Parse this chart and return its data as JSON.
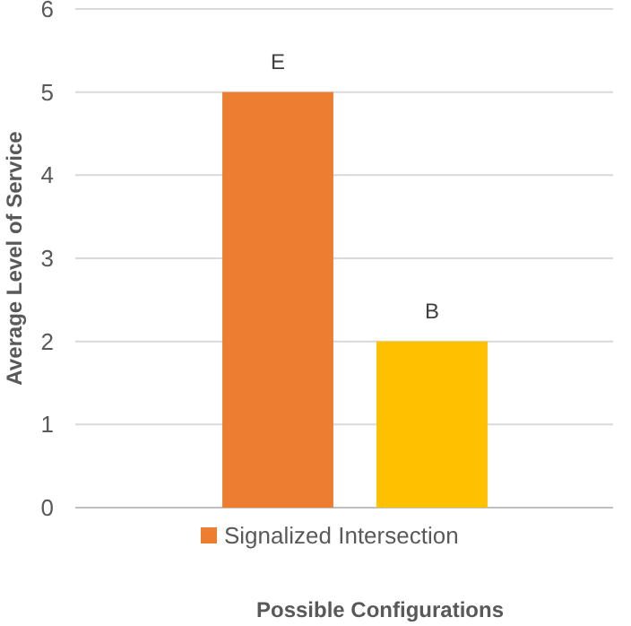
{
  "chart_data": {
    "type": "bar",
    "xlabel": "Possible Configurations",
    "ylabel": "Average Level of Service",
    "categories": [
      null,
      null
    ],
    "series": [
      {
        "name": "Signalized Intersection",
        "color": "#ed7d31",
        "colors": [
          "#ed7d31",
          "#ffc000"
        ],
        "values": [
          5,
          2
        ],
        "value_labels": [
          "E",
          "B"
        ]
      }
    ],
    "ylim": [
      0,
      6
    ],
    "yticks": [
      0,
      1,
      2,
      3,
      4,
      5,
      6
    ],
    "grid": "y",
    "legend": "bottom"
  }
}
